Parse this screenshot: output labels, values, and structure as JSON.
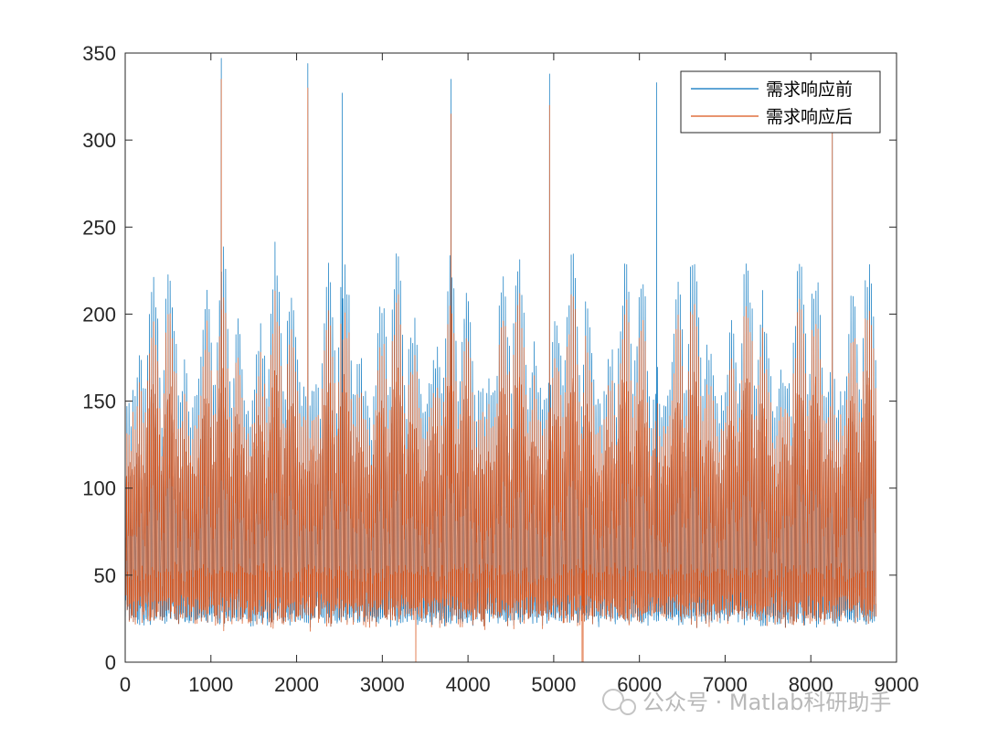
{
  "chart_data": {
    "type": "line",
    "title": "",
    "xlabel": "",
    "ylabel": "",
    "xlim": [
      0,
      9000
    ],
    "ylim": [
      0,
      350
    ],
    "x_ticks": [
      0,
      1000,
      2000,
      3000,
      4000,
      5000,
      6000,
      7000,
      8000,
      9000
    ],
    "y_ticks": [
      0,
      50,
      100,
      150,
      200,
      250,
      300,
      350
    ],
    "x_tick_labels": [
      "0",
      "1000",
      "2000",
      "3000",
      "4000",
      "5000",
      "6000",
      "7000",
      "8000",
      "9000"
    ],
    "y_tick_labels": [
      "0",
      "50",
      "100",
      "150",
      "200",
      "250",
      "300",
      "350"
    ],
    "n_points": 8760,
    "grid": false,
    "legend_position": "top-right",
    "series": [
      {
        "name": "需求响应前",
        "color": "#0072BD",
        "range_min": 5,
        "range_max": 347,
        "typical_low": 25,
        "notable_peaks": [
          [
            1120,
            347
          ],
          [
            2130,
            344
          ],
          [
            4950,
            338
          ],
          [
            3800,
            335
          ],
          [
            6200,
            333
          ],
          [
            2530,
            327
          ],
          [
            8250,
            322
          ]
        ]
      },
      {
        "name": "需求响应后",
        "color": "#D95319",
        "range_min": 0,
        "range_max": 335,
        "typical_low": 35,
        "notable_peaks": [
          [
            1120,
            335
          ],
          [
            2130,
            330
          ],
          [
            4950,
            320
          ],
          [
            3800,
            315
          ],
          [
            8250,
            305
          ]
        ]
      }
    ]
  },
  "watermark": {
    "text": "公众号 · Matlab科研助手"
  }
}
